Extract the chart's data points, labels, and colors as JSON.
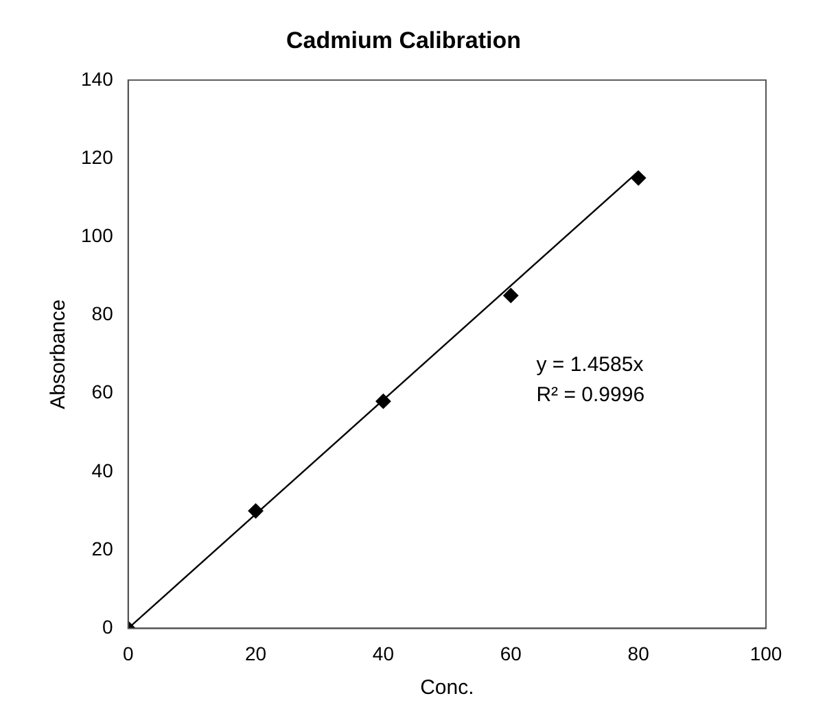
{
  "chart_data": {
    "type": "scatter",
    "title": "Cadmium Calibration",
    "xlabel": "Conc.",
    "ylabel": "Absorbance",
    "x": [
      0,
      20,
      40,
      60,
      80
    ],
    "series": [
      {
        "color": "#000000",
        "values": [
          0,
          30,
          58,
          85,
          115
        ],
        "marker": "diamond"
      },
      {
        "type": "line",
        "color": "#000000",
        "x": [
          0,
          80
        ],
        "values": [
          0,
          116.68
        ],
        "marker": "none"
      }
    ],
    "xlim": [
      0,
      100
    ],
    "xticks": [
      0,
      20,
      40,
      60,
      80,
      100
    ],
    "ylim": [
      0,
      140
    ],
    "yticks": [
      0,
      20,
      40,
      60,
      80,
      100,
      120,
      140
    ],
    "grid": false,
    "legend": false,
    "annotations": [
      "y = 1.4585x",
      "R² = 0.9996"
    ]
  }
}
